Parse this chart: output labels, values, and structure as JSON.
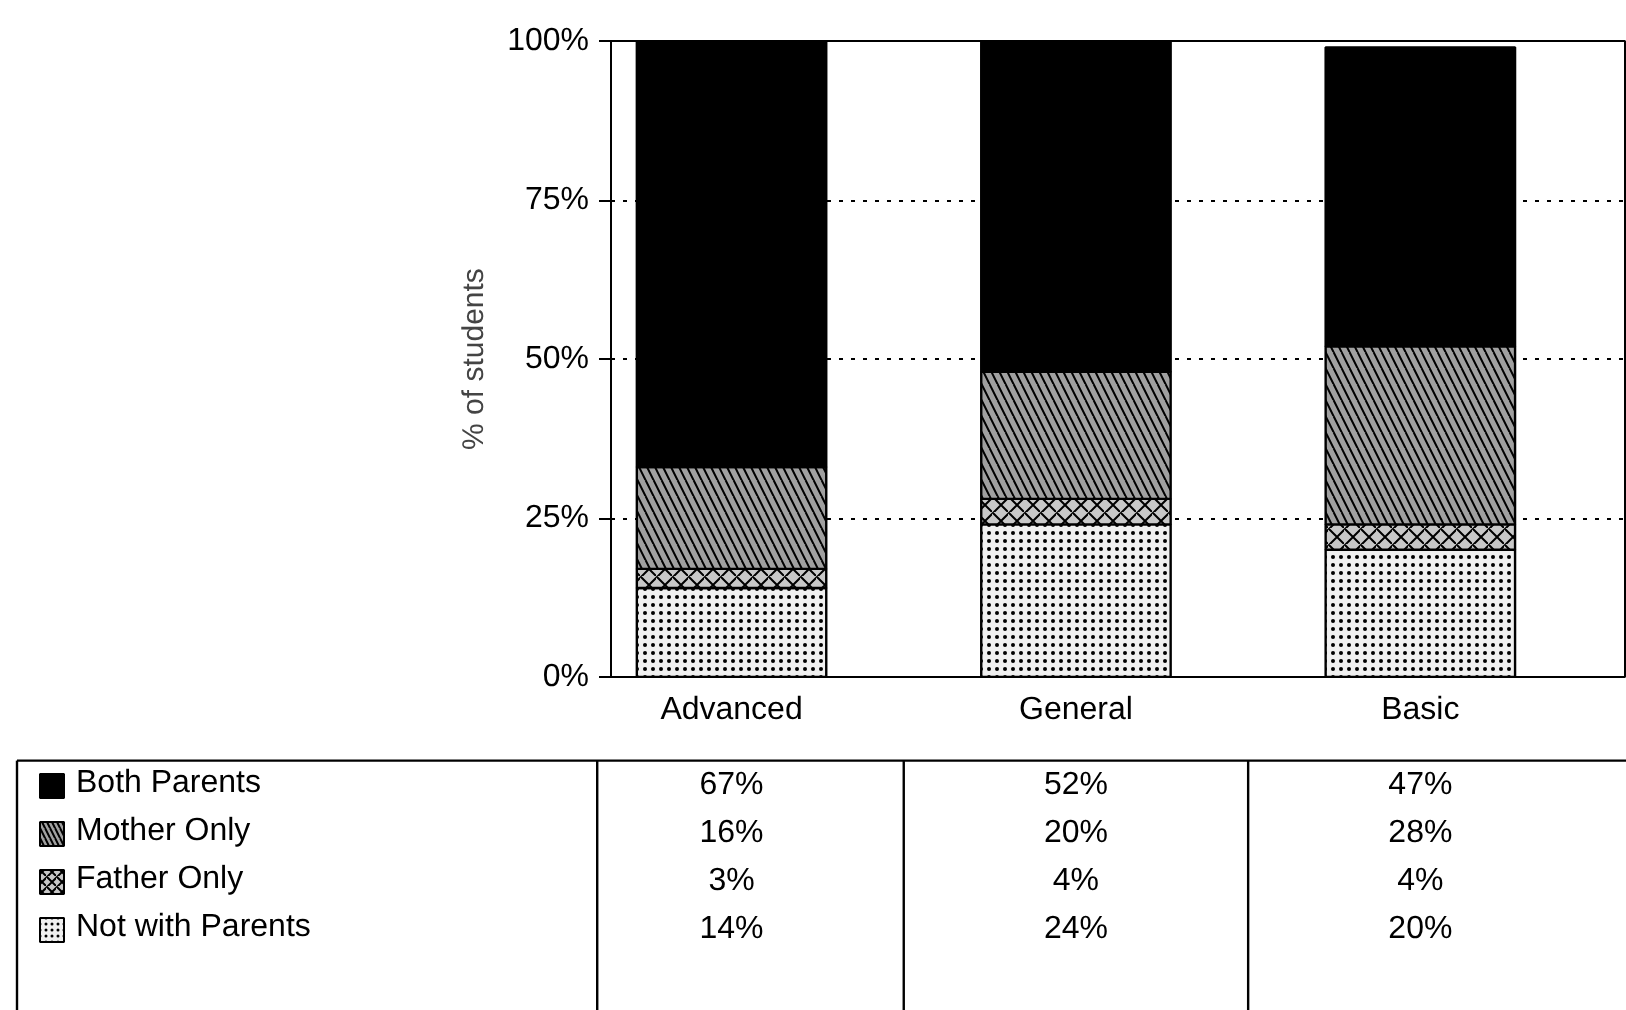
{
  "chart_data": {
    "type": "bar",
    "stacked": true,
    "ylabel": "% of students",
    "categories": [
      "Advanced",
      "General",
      "Basic"
    ],
    "series": [
      {
        "name": "Not with Parents",
        "color": "#f0f0f0",
        "values": [
          14,
          24,
          20
        ],
        "value_labels": [
          "14%",
          "24%",
          "20%"
        ]
      },
      {
        "name": "Father Only",
        "color": "#c8c8c8",
        "values": [
          3,
          4,
          4
        ],
        "value_labels": [
          "3%",
          "4%",
          "4%"
        ]
      },
      {
        "name": "Mother Only",
        "color": "#a0a0a0",
        "values": [
          16,
          20,
          28
        ],
        "value_labels": [
          "16%",
          "20%",
          "28%"
        ]
      },
      {
        "name": "Both Parents",
        "color": "#000000",
        "values": [
          67,
          52,
          47
        ],
        "value_labels": [
          "67%",
          "52%",
          "47%"
        ]
      }
    ],
    "ylim": [
      0,
      100
    ],
    "yticks": [
      {
        "value": 0,
        "label": "0%"
      },
      {
        "value": 25,
        "label": "25%"
      },
      {
        "value": 50,
        "label": "50%"
      },
      {
        "value": 75,
        "label": "75%"
      },
      {
        "value": 100,
        "label": "100%"
      }
    ],
    "grid": "y",
    "legend": "bottom left"
  }
}
